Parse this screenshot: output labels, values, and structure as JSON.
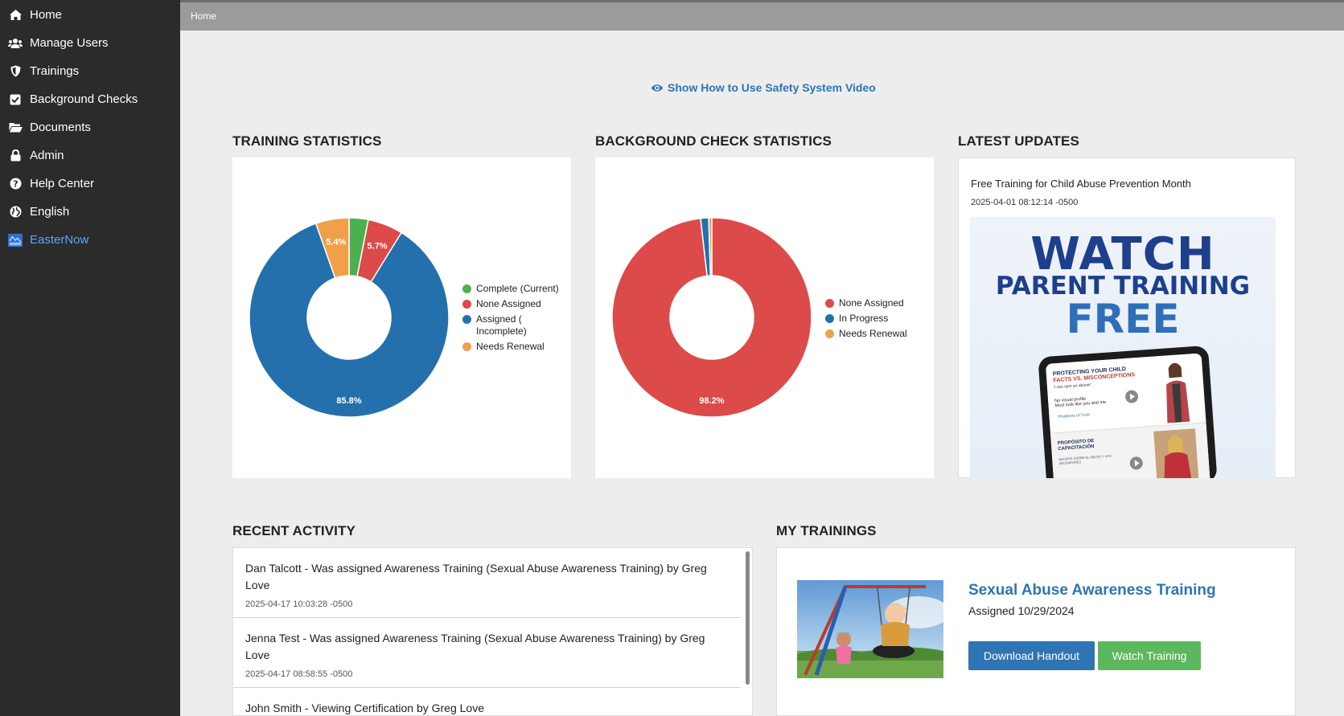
{
  "sidebar": {
    "items": [
      {
        "label": "Home",
        "icon": "home-icon"
      },
      {
        "label": "Manage Users",
        "icon": "users-icon"
      },
      {
        "label": "Trainings",
        "icon": "shield-icon"
      },
      {
        "label": "Background Checks",
        "icon": "checkbox-icon"
      },
      {
        "label": "Documents",
        "icon": "folder-icon"
      },
      {
        "label": "Admin",
        "icon": "lock-icon"
      },
      {
        "label": "Help Center",
        "icon": "question-icon"
      },
      {
        "label": "English",
        "icon": "globe-icon"
      },
      {
        "label": "EasterNow",
        "icon": "brand-logo-icon"
      }
    ]
  },
  "breadcrumb": "Home",
  "video_link": "Show How to Use Safety System Video",
  "sections": {
    "training_stats": "TRAINING STATISTICS",
    "background_stats": "BACKGROUND CHECK STATISTICS",
    "latest_updates": "LATEST UPDATES",
    "recent_activity": "RECENT ACTIVITY",
    "my_trainings": "MY TRAININGS"
  },
  "colors": {
    "green": "#4caf50",
    "red": "#dc4a4a",
    "blue": "#2470ad",
    "orange": "#f0a04b",
    "accent": "#2f74b4"
  },
  "chart_data": [
    {
      "type": "pie",
      "title": "TRAINING STATISTICS",
      "categories": [
        "Complete (Current)",
        "None Assigned",
        "Assigned ( Incomplete)",
        "Needs Renewal"
      ],
      "values": [
        3.1,
        5.7,
        85.8,
        5.4
      ],
      "labels": [
        "",
        "5.7%",
        "85.8%",
        "5.4%"
      ],
      "legend": "right"
    },
    {
      "type": "pie",
      "title": "BACKGROUND CHECK STATISTICS",
      "categories": [
        "None Assigned",
        "In Progress",
        "Needs Renewal"
      ],
      "values": [
        98.2,
        1.3,
        0.5
      ],
      "labels": [
        "98.2%",
        "",
        ""
      ],
      "legend": "right"
    }
  ],
  "latest_update": {
    "title": "Free Training for Child Abuse Prevention Month",
    "date": "2025-04-01 08:12:14 -0500",
    "promo": {
      "line1": "WATCH",
      "line2": "PARENT TRAINING",
      "line3": "FREE",
      "screen_heading_1": "PROTECTING YOUR CHILD",
      "screen_heading_2": "FACTS VS. MISCONCEPTIONS",
      "screen_quote": "'I can spot an abuser'",
      "screen_line_1": "No visual profile",
      "screen_line_2": "Most look like you and me",
      "screen_line_3": "*Positions of Trust",
      "screen_heading_3": "PROPÓSITO DE CAPACITACIÓN",
      "screen_line_4": "HECHOS SOBRE EL ABUSO Y LOS ABUSADORES"
    }
  },
  "recent_activity": [
    {
      "text": "Dan Talcott - Was assigned Awareness Training (Sexual Abuse Awareness Training) by Greg Love",
      "date": "2025-04-17 10:03:28 -0500"
    },
    {
      "text": "Jenna Test - Was assigned Awareness Training (Sexual Abuse Awareness Training) by Greg Love",
      "date": "2025-04-17 08:58:55 -0500"
    },
    {
      "text": "John Smith - Viewing Certification by Greg Love",
      "date": ""
    }
  ],
  "my_training": {
    "title": "Sexual Abuse Awareness Training",
    "assigned": "Assigned 10/29/2024",
    "download_label": "Download Handout",
    "watch_label": "Watch Training"
  }
}
